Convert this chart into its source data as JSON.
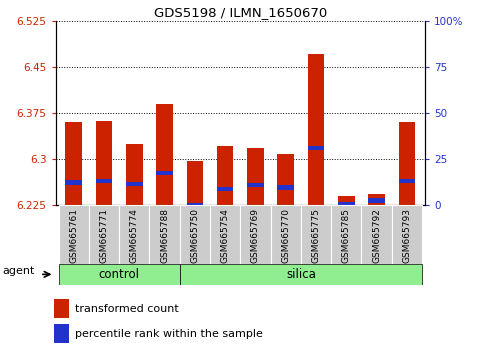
{
  "title": "GDS5198 / ILMN_1650670",
  "samples": [
    "GSM665761",
    "GSM665771",
    "GSM665774",
    "GSM665788",
    "GSM665750",
    "GSM665754",
    "GSM665769",
    "GSM665770",
    "GSM665775",
    "GSM665785",
    "GSM665792",
    "GSM665793"
  ],
  "groups": [
    "control",
    "control",
    "control",
    "control",
    "silica",
    "silica",
    "silica",
    "silica",
    "silica",
    "silica",
    "silica",
    "silica"
  ],
  "transformed_count": [
    6.36,
    6.362,
    6.325,
    6.39,
    6.298,
    6.322,
    6.318,
    6.308,
    6.472,
    6.24,
    6.244,
    6.36
  ],
  "percentile_rank": [
    6.262,
    6.265,
    6.26,
    6.278,
    6.225,
    6.252,
    6.258,
    6.254,
    6.318,
    6.227,
    6.233,
    6.265
  ],
  "y_min": 6.225,
  "y_max": 6.525,
  "y_ticks_left": [
    6.225,
    6.3,
    6.375,
    6.45,
    6.525
  ],
  "y_ticks_right": [
    0,
    25,
    50,
    75,
    100
  ],
  "y_right_labels": [
    "0",
    "25",
    "50",
    "75",
    "100%"
  ],
  "bar_color": "#cc2200",
  "percentile_color": "#2233cc",
  "grid_color": "#000000",
  "bg_color": "#ffffff",
  "plot_bg_color": "#ffffff",
  "tick_label_color_left": "#cc2200",
  "tick_label_color_right": "#2233cc",
  "bar_width": 0.55,
  "control_bg": "#90EE90",
  "silica_bg": "#90EE90",
  "xticklabel_bg": "#cccccc",
  "agent_label": "agent",
  "legend_transformed": "transformed count",
  "legend_percentile": "percentile rank within the sample"
}
